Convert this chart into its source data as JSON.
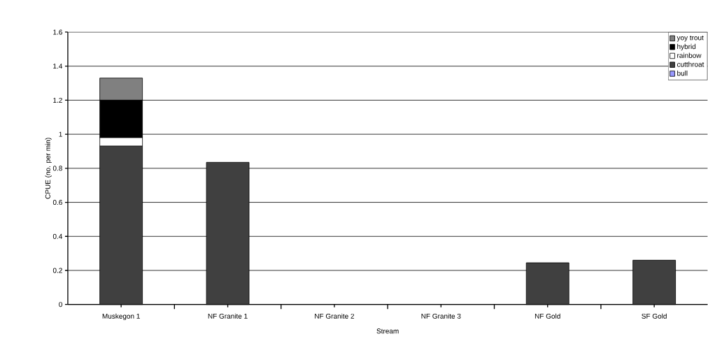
{
  "chart_data": {
    "type": "bar",
    "stacked": true,
    "xlabel": "Stream",
    "ylabel": "CPUE (no. per min)",
    "categories": [
      "Muskegon 1",
      "NF Granite 1",
      "NF Granite 2",
      "NF Granite 3",
      "NF Gold",
      "SF Gold"
    ],
    "series": [
      {
        "name": "bull",
        "color": "#9999ff",
        "values": [
          0,
          0,
          0,
          0,
          0,
          0
        ]
      },
      {
        "name": "cutthroat",
        "color": "#404040",
        "values": [
          0.93,
          0.835,
          0,
          0,
          0.245,
          0.26
        ]
      },
      {
        "name": "rainbow",
        "color": "#ffffff",
        "values": [
          0.05,
          0,
          0,
          0,
          0,
          0
        ]
      },
      {
        "name": "hybrid",
        "color": "#000000",
        "values": [
          0.22,
          0,
          0,
          0,
          0,
          0
        ]
      },
      {
        "name": "yoy trout",
        "color": "#808080",
        "values": [
          0.13,
          0,
          0,
          0,
          0,
          0
        ]
      }
    ],
    "ylim": [
      0,
      1.6
    ],
    "yticks": [
      0,
      0.2,
      0.4,
      0.6,
      0.8,
      1,
      1.2,
      1.4,
      1.6
    ],
    "grid": "y",
    "legend": "top right"
  }
}
